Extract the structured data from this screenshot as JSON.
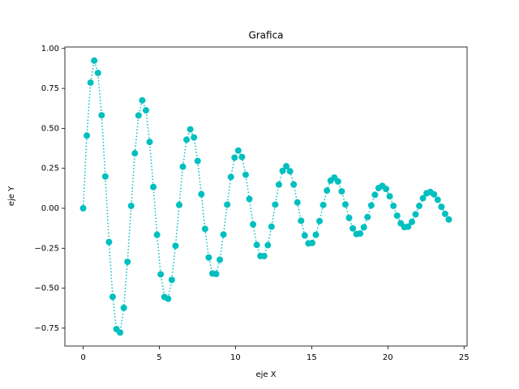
{
  "chart_data": {
    "type": "scatter-line",
    "title": "Grafica",
    "x_label": "eje X",
    "y_label": "eje Y",
    "color": "#00bfbf",
    "line_style": "dotted",
    "grid": false,
    "xlim": [
      -1.2,
      25.2
    ],
    "xticks": [
      0,
      5,
      10,
      15,
      20,
      25
    ],
    "ylim": [
      -0.862,
      1.009
    ],
    "yticks": [
      {
        "value": -0.75,
        "label": "−0.75"
      },
      {
        "value": -0.5,
        "label": "−0.50"
      },
      {
        "value": -0.25,
        "label": "−0.25"
      },
      {
        "value": 0,
        "label": "0.00"
      },
      {
        "value": 0.25,
        "label": "0.25"
      },
      {
        "value": 0.5,
        "label": "0.50"
      },
      {
        "value": 0.75,
        "label": "0.75"
      },
      {
        "value": 1,
        "label": "1.00"
      }
    ],
    "x": [
      0,
      0.242,
      0.485,
      0.727,
      0.97,
      1.212,
      1.455,
      1.697,
      1.939,
      2.182,
      2.424,
      2.667,
      2.909,
      3.152,
      3.394,
      3.636,
      3.879,
      4.121,
      4.364,
      4.606,
      4.848,
      5.091,
      5.333,
      5.576,
      5.818,
      6.061,
      6.303,
      6.545,
      6.788,
      7.03,
      7.273,
      7.515,
      7.758,
      8.0,
      8.242,
      8.485,
      8.727,
      8.97,
      9.212,
      9.455,
      9.697,
      9.939,
      10.182,
      10.424,
      10.667,
      10.909,
      11.152,
      11.394,
      11.636,
      11.879,
      12.121,
      12.364,
      12.606,
      12.848,
      13.091,
      13.333,
      13.576,
      13.818,
      14.061,
      14.303,
      14.545,
      14.788,
      15.03,
      15.273,
      15.515,
      15.758,
      16.0,
      16.242,
      16.485,
      16.727,
      16.97,
      17.212,
      17.455,
      17.697,
      17.939,
      18.182,
      18.424,
      18.667,
      18.909,
      19.152,
      19.394,
      19.636,
      19.879,
      20.121,
      20.364,
      20.606,
      20.848,
      21.091,
      21.333,
      21.576,
      21.818,
      22.061,
      22.303,
      22.545,
      22.788,
      23.03,
      23.273,
      23.515,
      23.758,
      24
    ],
    "values": [
      0,
      0.455,
      0.786,
      0.924,
      0.847,
      0.582,
      0.199,
      -0.211,
      -0.554,
      -0.756,
      -0.777,
      -0.623,
      -0.335,
      0.015,
      0.344,
      0.581,
      0.675,
      0.613,
      0.415,
      0.133,
      -0.166,
      -0.413,
      -0.555,
      -0.566,
      -0.448,
      -0.235,
      0.021,
      0.26,
      0.429,
      0.494,
      0.443,
      0.296,
      0.088,
      -0.129,
      -0.308,
      -0.408,
      -0.411,
      -0.322,
      -0.164,
      0.023,
      0.196,
      0.317,
      0.361,
      0.321,
      0.21,
      0.058,
      -0.101,
      -0.229,
      -0.299,
      -0.299,
      -0.231,
      -0.115,
      0.023,
      0.148,
      0.234,
      0.263,
      0.232,
      0.149,
      0.037,
      -0.078,
      -0.17,
      -0.22,
      -0.217,
      -0.166,
      -0.08,
      0.021,
      0.111,
      0.173,
      0.192,
      0.168,
      0.106,
      0.024,
      -0.06,
      -0.126,
      -0.161,
      -0.158,
      -0.119,
      -0.055,
      0.018,
      0.084,
      0.127,
      0.14,
      0.121,
      0.075,
      0.015,
      -0.046,
      -0.094,
      -0.118,
      -0.115,
      -0.085,
      -0.038,
      0.015,
      0.063,
      0.094,
      0.102,
      0.087,
      0.053,
      0.009,
      -0.035,
      -0.07
    ]
  }
}
